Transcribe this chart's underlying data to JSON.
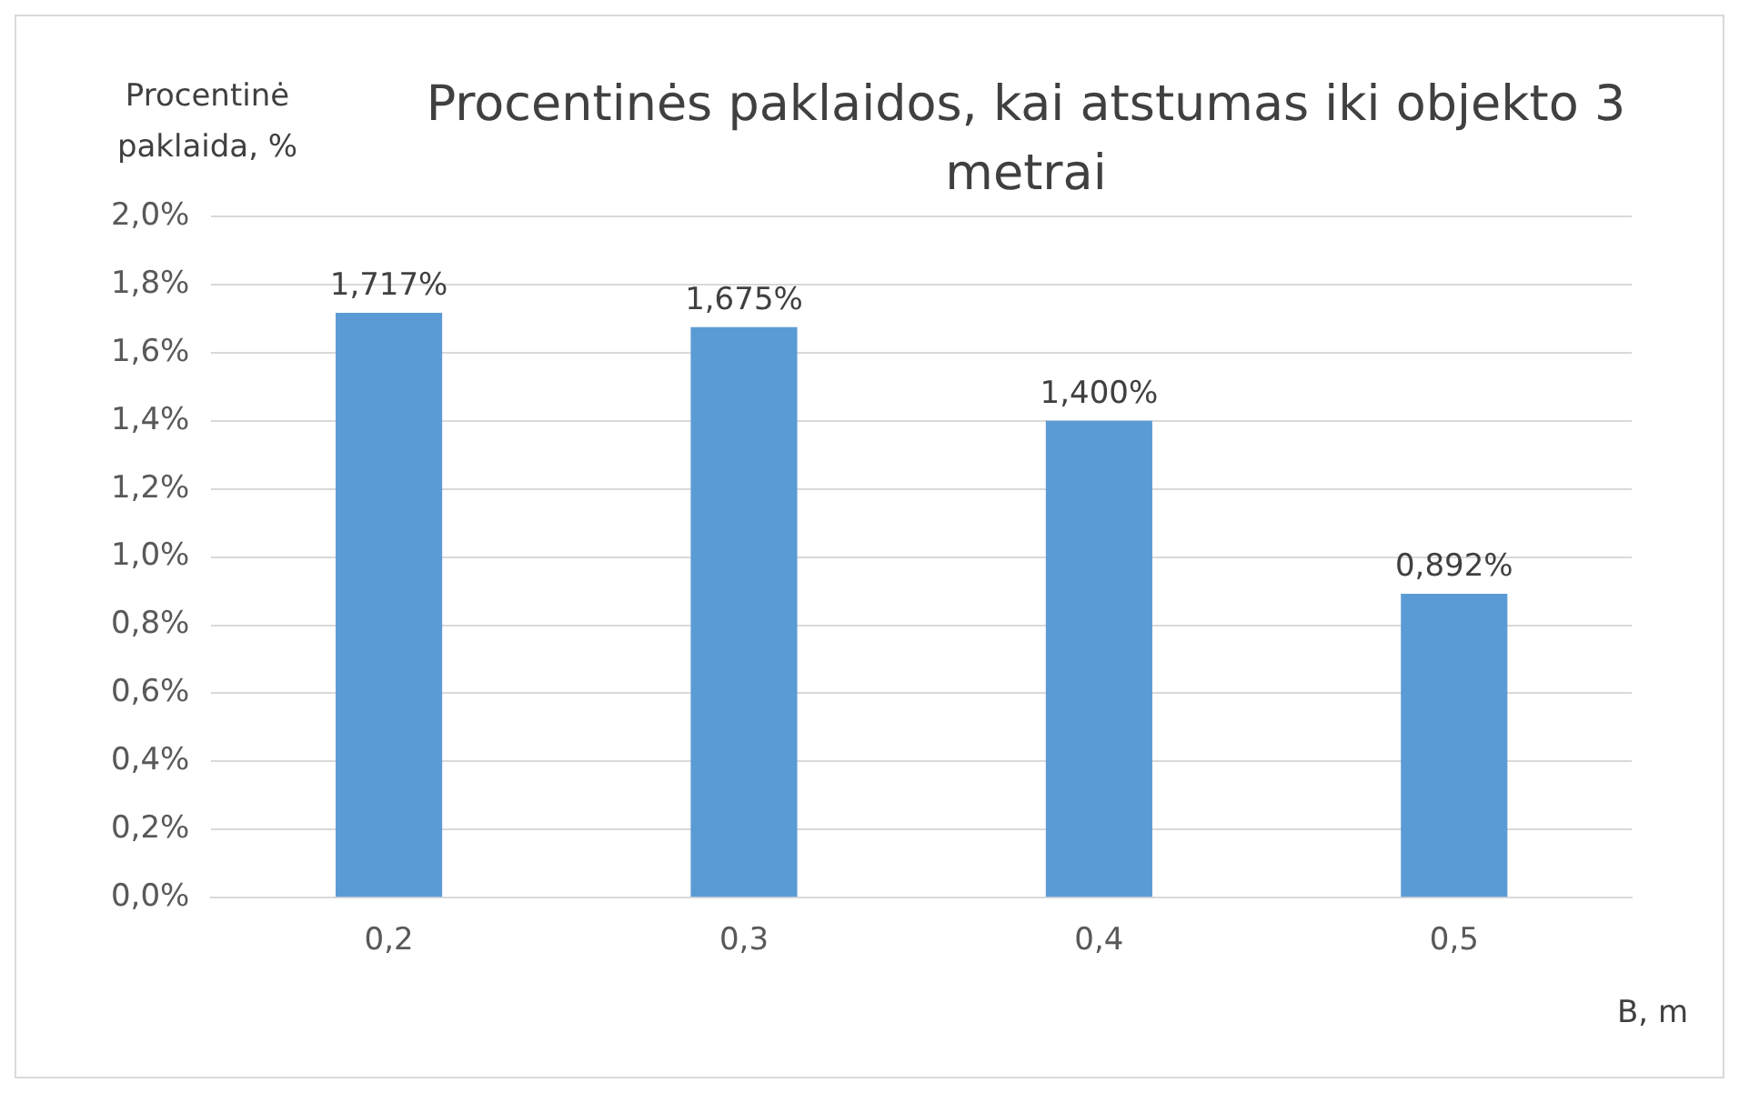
{
  "chart_data": {
    "type": "bar",
    "title": "Procentinės paklaidos, kai atstumas iki objekto 3 metrai",
    "ylabel": "Procentinė paklaida, %",
    "xlabel": "B, m",
    "categories": [
      "0,2",
      "0,3",
      "0,4",
      "0,5"
    ],
    "values": [
      1.717,
      1.675,
      1.4,
      0.892
    ],
    "color": "#5b9bd5",
    "value_labels": [
      "1,717%",
      "1,675%",
      "1,400%",
      "0,892%"
    ],
    "ylim": [
      0,
      2
    ],
    "yticks": [
      {
        "value": 0,
        "label": "0,0%"
      },
      {
        "value": 0.2,
        "label": "0,2%"
      },
      {
        "value": 0.4,
        "label": "0,4%"
      },
      {
        "value": 0.6,
        "label": "0,6%"
      },
      {
        "value": 0.8,
        "label": "0,8%"
      },
      {
        "value": 1,
        "label": "1,0%"
      },
      {
        "value": 1.2,
        "label": "1,2%"
      },
      {
        "value": 1.4,
        "label": "1,4%"
      },
      {
        "value": 1.6,
        "label": "1,6%"
      },
      {
        "value": 1.8,
        "label": "1,8%"
      },
      {
        "value": 2,
        "label": "2,0%"
      }
    ],
    "grid": "y",
    "legend": false
  }
}
